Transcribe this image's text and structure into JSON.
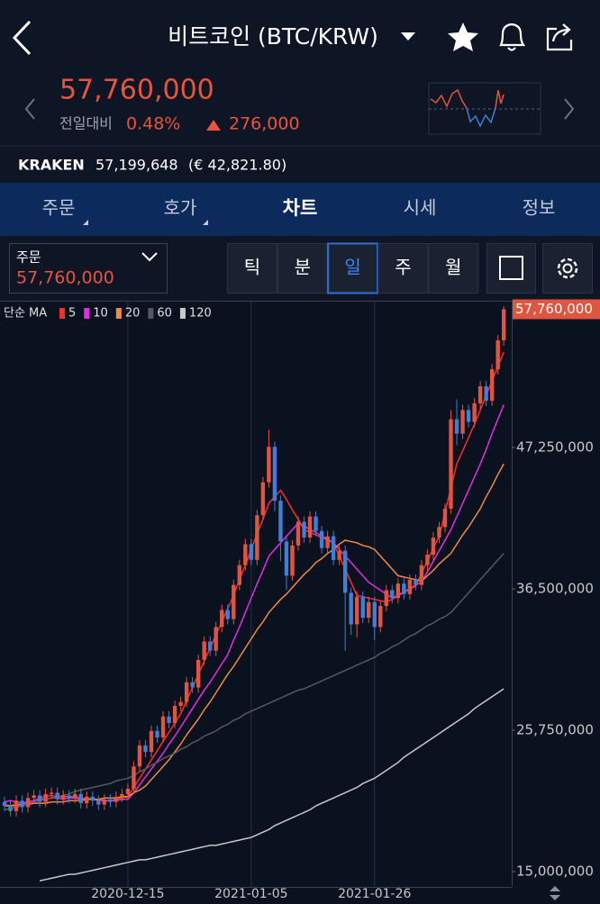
{
  "header": {
    "title": "비트코인 (BTC/KRW)"
  },
  "quote": {
    "price": "57,760,000",
    "change_label": "전일대비",
    "change_pct": "0.48%",
    "change": "276,000"
  },
  "exchange": {
    "name": "KRAKEN",
    "price": "57,199,648",
    "eur": "(€ 42,821.80)"
  },
  "tabs": [
    "주문",
    "호가",
    "차트",
    "시세",
    "정보"
  ],
  "order": {
    "label": "주문",
    "price": "57,760,000"
  },
  "periods": [
    "틱",
    "분",
    "일",
    "주",
    "월"
  ],
  "chart_data": {
    "type": "candlestick",
    "x": [
      null,
      null,
      null,
      null,
      null,
      null,
      null,
      null,
      null,
      null,
      null,
      null,
      null,
      null,
      null,
      null,
      null,
      null,
      null,
      null,
      null,
      "2020-12-15",
      null,
      null,
      null,
      null,
      null,
      null,
      null,
      null,
      null,
      null,
      null,
      null,
      null,
      null,
      null,
      null,
      null,
      null,
      null,
      null,
      "2021-01-05",
      null,
      null,
      null,
      null,
      null,
      null,
      null,
      null,
      null,
      null,
      null,
      null,
      null,
      null,
      null,
      null,
      null,
      null,
      null,
      null,
      "2021-01-26",
      null,
      null,
      null,
      null,
      null,
      null,
      null,
      null,
      null,
      null,
      null,
      null,
      null,
      null,
      null,
      null,
      null,
      null,
      null,
      null,
      null,
      null
    ],
    "open": [
      20300000,
      20000000,
      19600000,
      20400000,
      19900000,
      20600000,
      20800000,
      20300000,
      20900000,
      21000000,
      20500000,
      20800000,
      20600000,
      20900000,
      20200000,
      20700000,
      20400000,
      20100000,
      20500000,
      20300000,
      20700000,
      20900000,
      21300000,
      23000000,
      24600000,
      24100000,
      25700000,
      25200000,
      26800000,
      26300000,
      27600000,
      27900000,
      29400000,
      29000000,
      31100000,
      32500000,
      31800000,
      33600000,
      34900000,
      34200000,
      36800000,
      38300000,
      39900000,
      38700000,
      42100000,
      44600000,
      47300000,
      43200000,
      40100000,
      37500000,
      39800000,
      41600000,
      40400000,
      42000000,
      40900000,
      39600000,
      40500000,
      38700000,
      39400000,
      36200000,
      33800000,
      35900000,
      34300000,
      35500000,
      33600000,
      35200000,
      36400000,
      35800000,
      36900000,
      36100000,
      37200000,
      36800000,
      38300000,
      39100000,
      40400000,
      41200000,
      42600000,
      49400000,
      48300000,
      50100000,
      49200000,
      50600000,
      51900000,
      50800000,
      53200000,
      55400000
    ],
    "high": [
      20700000,
      20400000,
      20800000,
      20800000,
      21000000,
      21200000,
      21200000,
      21300000,
      21400000,
      21400000,
      21200000,
      21200000,
      21300000,
      21300000,
      21100000,
      21100000,
      20800000,
      20900000,
      20900000,
      21100000,
      21300000,
      21700000,
      23400000,
      25000000,
      25000000,
      26100000,
      26100000,
      27200000,
      27200000,
      28000000,
      28300000,
      29800000,
      29800000,
      31500000,
      32900000,
      32900000,
      34000000,
      35300000,
      35300000,
      37200000,
      38700000,
      40300000,
      40300000,
      42500000,
      45000000,
      48600000,
      47700000,
      43600000,
      40500000,
      40200000,
      42000000,
      42000000,
      42400000,
      42400000,
      41300000,
      40900000,
      40900000,
      39800000,
      39800000,
      36600000,
      36300000,
      36300000,
      35900000,
      35900000,
      35600000,
      36800000,
      36800000,
      37300000,
      37300000,
      37600000,
      37600000,
      38700000,
      39500000,
      40800000,
      41600000,
      43000000,
      50100000,
      50900000,
      50500000,
      50500000,
      51000000,
      52300000,
      52300000,
      53600000,
      55800000,
      58000000
    ],
    "low": [
      19600000,
      19200000,
      19200000,
      19500000,
      19500000,
      20200000,
      19900000,
      19900000,
      20500000,
      20100000,
      20100000,
      20200000,
      20200000,
      19800000,
      19800000,
      20000000,
      19700000,
      19700000,
      19900000,
      19900000,
      20300000,
      20500000,
      20900000,
      22600000,
      23700000,
      23700000,
      24800000,
      24800000,
      25900000,
      25900000,
      27200000,
      27500000,
      28600000,
      28600000,
      30700000,
      31400000,
      31400000,
      33200000,
      33800000,
      33800000,
      36400000,
      37900000,
      38300000,
      38300000,
      41700000,
      44200000,
      42400000,
      38600000,
      36400000,
      37100000,
      39400000,
      40000000,
      40000000,
      40500000,
      39200000,
      39200000,
      38300000,
      38300000,
      31800000,
      33000000,
      32800000,
      33900000,
      33900000,
      32600000,
      33200000,
      34800000,
      35400000,
      35400000,
      35700000,
      35700000,
      36400000,
      36400000,
      37900000,
      38700000,
      40000000,
      40800000,
      42200000,
      47400000,
      47900000,
      48800000,
      48800000,
      50200000,
      50400000,
      50400000,
      52800000,
      55000000
    ],
    "close": [
      20000000,
      19600000,
      20400000,
      19900000,
      20600000,
      20800000,
      20300000,
      20900000,
      21000000,
      20500000,
      20800000,
      20600000,
      20900000,
      20200000,
      20700000,
      20400000,
      20100000,
      20500000,
      20300000,
      20700000,
      20900000,
      21300000,
      23000000,
      24600000,
      24100000,
      25700000,
      25200000,
      26800000,
      26300000,
      27600000,
      27900000,
      29400000,
      29000000,
      31100000,
      32500000,
      31800000,
      33600000,
      34900000,
      34200000,
      36800000,
      38300000,
      39900000,
      38700000,
      42100000,
      44600000,
      47300000,
      43200000,
      40100000,
      37500000,
      39800000,
      41600000,
      40400000,
      42000000,
      40900000,
      39600000,
      40500000,
      38700000,
      39400000,
      36200000,
      33800000,
      35900000,
      34300000,
      35500000,
      33600000,
      35200000,
      36400000,
      35800000,
      36900000,
      36100000,
      37200000,
      36800000,
      38300000,
      39100000,
      40400000,
      41200000,
      42600000,
      49400000,
      48300000,
      50100000,
      49200000,
      50600000,
      51900000,
      50800000,
      53200000,
      55400000,
      57760000
    ],
    "up_color": "#e0553f",
    "down_color": "#3f7fd6",
    "ma_label": "단순 MA",
    "series": [
      {
        "name": "5",
        "color": "#ff2a2a",
        "values": [
          20100000,
          20000000,
          20000000,
          20100000,
          20200000,
          20400000,
          20600000,
          20700000,
          20800000,
          20700000,
          20700000,
          20700000,
          20700000,
          20600000,
          20500000,
          20500000,
          20400000,
          20400000,
          20400000,
          20500000,
          20600000,
          20700000,
          21400000,
          22100000,
          22800000,
          23500000,
          24200000,
          24900000,
          25600000,
          26300000,
          27000000,
          28000000,
          29000000,
          30000000,
          31000000,
          32000000,
          33000000,
          34000000,
          35000000,
          36000000,
          37200000,
          38300000,
          39500000,
          40700000,
          41800000,
          43000000,
          43500000,
          44000000,
          43300000,
          42500000,
          41800000,
          41000000,
          40800000,
          40600000,
          40400000,
          40200000,
          40000000,
          39000000,
          38000000,
          37000000,
          36000000,
          35900000,
          35800000,
          35700000,
          35600000,
          35500000,
          35700000,
          36000000,
          36200000,
          36500000,
          36700000,
          37700000,
          38600000,
          39600000,
          40500000,
          42300000,
          44200000,
          46000000,
          47000000,
          48000000,
          49000000,
          50100000,
          51200000,
          52300000,
          53400000,
          54500000
        ]
      },
      {
        "name": "10",
        "color": "#e02ee0",
        "values": [
          20300000,
          20400000,
          20300000,
          20200000,
          20300000,
          20400000,
          20500000,
          20500000,
          20600000,
          20600000,
          20500000,
          20600000,
          20600000,
          20500000,
          20600000,
          20500000,
          20500000,
          20400000,
          20400000,
          20400000,
          20500000,
          20500000,
          21000000,
          21600000,
          22200000,
          22800000,
          23400000,
          24000000,
          24700000,
          25300000,
          26000000,
          26700000,
          27400000,
          28100000,
          28800000,
          29400000,
          30100000,
          30800000,
          31500000,
          32600000,
          33600000,
          34700000,
          35800000,
          36900000,
          37900000,
          39000000,
          39500000,
          40000000,
          40500000,
          41000000,
          41500000,
          41300000,
          41000000,
          40800000,
          40500000,
          40300000,
          40000000,
          39500000,
          39000000,
          38500000,
          38000000,
          37500000,
          37000000,
          36700000,
          36400000,
          36100000,
          35800000,
          36000000,
          36300000,
          36500000,
          36800000,
          37000000,
          37800000,
          38600000,
          39400000,
          40200000,
          41000000,
          42000000,
          43000000,
          44000000,
          45000000,
          46000000,
          47100000,
          48300000,
          49400000,
          50500000
        ]
      },
      {
        "name": "20",
        "color": "#f08a40",
        "values": [
          20000000,
          20000000,
          20100000,
          20100000,
          20100000,
          20200000,
          20200000,
          20200000,
          20300000,
          20300000,
          20300000,
          20400000,
          20400000,
          20400000,
          20500000,
          20500000,
          20500000,
          20600000,
          20600000,
          20600000,
          20700000,
          20700000,
          21000000,
          21200000,
          21500000,
          22000000,
          22500000,
          23000000,
          23500000,
          24100000,
          24700000,
          25400000,
          26000000,
          26600000,
          27300000,
          27900000,
          28600000,
          29300000,
          30000000,
          30600000,
          31300000,
          32000000,
          32700000,
          33400000,
          34000000,
          34700000,
          35200000,
          35700000,
          36100000,
          36600000,
          37100000,
          37600000,
          38000000,
          38500000,
          38800000,
          39200000,
          39500000,
          39900000,
          40200000,
          40100000,
          40000000,
          39800000,
          39700000,
          39500000,
          39000000,
          38500000,
          38000000,
          37500000,
          37400000,
          37300000,
          37200000,
          37100000,
          37500000,
          37900000,
          38400000,
          38800000,
          39200000,
          39900000,
          40600000,
          41200000,
          41900000,
          42600000,
          43500000,
          44300000,
          45200000,
          46000000
        ]
      },
      {
        "name": "60",
        "color": "#55595f",
        "values": [
          19700000,
          19800000,
          19900000,
          20000000,
          20200000,
          20300000,
          20400000,
          20500000,
          20600000,
          20700000,
          20800000,
          20900000,
          21100000,
          21200000,
          21300000,
          21400000,
          21500000,
          21600000,
          21700000,
          21900000,
          22000000,
          22100000,
          22300000,
          22600000,
          22800000,
          23100000,
          23300000,
          23600000,
          23800000,
          24000000,
          24300000,
          24500000,
          24800000,
          25000000,
          25300000,
          25500000,
          25700000,
          26000000,
          26200000,
          26500000,
          26700000,
          27000000,
          27200000,
          27400000,
          27600000,
          27800000,
          28000000,
          28200000,
          28400000,
          28600000,
          28800000,
          28900000,
          29100000,
          29300000,
          29500000,
          29700000,
          29900000,
          30100000,
          30300000,
          30500000,
          30700000,
          30900000,
          31100000,
          31300000,
          31600000,
          31800000,
          32100000,
          32300000,
          32600000,
          32900000,
          33100000,
          33400000,
          33700000,
          33900000,
          34200000,
          34400000,
          34700000,
          35200000,
          35700000,
          36200000,
          36700000,
          37200000,
          37700000,
          38200000,
          38700000,
          39200000
        ]
      },
      {
        "name": "120",
        "color": "#c8c8c8",
        "values": [
          null,
          null,
          null,
          null,
          null,
          null,
          14300000,
          14400000,
          14500000,
          14600000,
          14700000,
          14800000,
          14800000,
          14900000,
          15000000,
          15100000,
          15200000,
          15300000,
          15400000,
          15500000,
          15600000,
          15700000,
          15800000,
          15900000,
          15900000,
          16000000,
          16100000,
          16200000,
          16300000,
          16400000,
          16500000,
          16600000,
          16700000,
          16800000,
          16900000,
          17000000,
          17000000,
          17100000,
          17200000,
          17300000,
          17400000,
          17500000,
          17600000,
          17800000,
          18000000,
          18200000,
          18500000,
          18700000,
          18900000,
          19100000,
          19300000,
          19500000,
          19700000,
          20000000,
          20200000,
          20400000,
          20600000,
          20800000,
          21000000,
          21200000,
          21400000,
          21700000,
          21900000,
          22100000,
          22400000,
          22700000,
          23000000,
          23300000,
          23700000,
          24000000,
          24300000,
          24600000,
          24900000,
          25200000,
          25500000,
          25800000,
          26100000,
          26400000,
          26700000,
          27000000,
          27400000,
          27700000,
          28000000,
          28300000,
          28600000,
          28900000
        ]
      }
    ],
    "ylim": [
      13840000,
      58340000
    ],
    "yticks": [
      {
        "value": 15000000,
        "label": "15,000,000"
      },
      {
        "value": 25750000,
        "label": "25,750,000"
      },
      {
        "value": 36500000,
        "label": "36,500,000"
      },
      {
        "value": 47250000,
        "label": "47,250,000"
      }
    ],
    "last_price": {
      "value": 57760000,
      "label": "57,760,000"
    },
    "grid": true
  }
}
